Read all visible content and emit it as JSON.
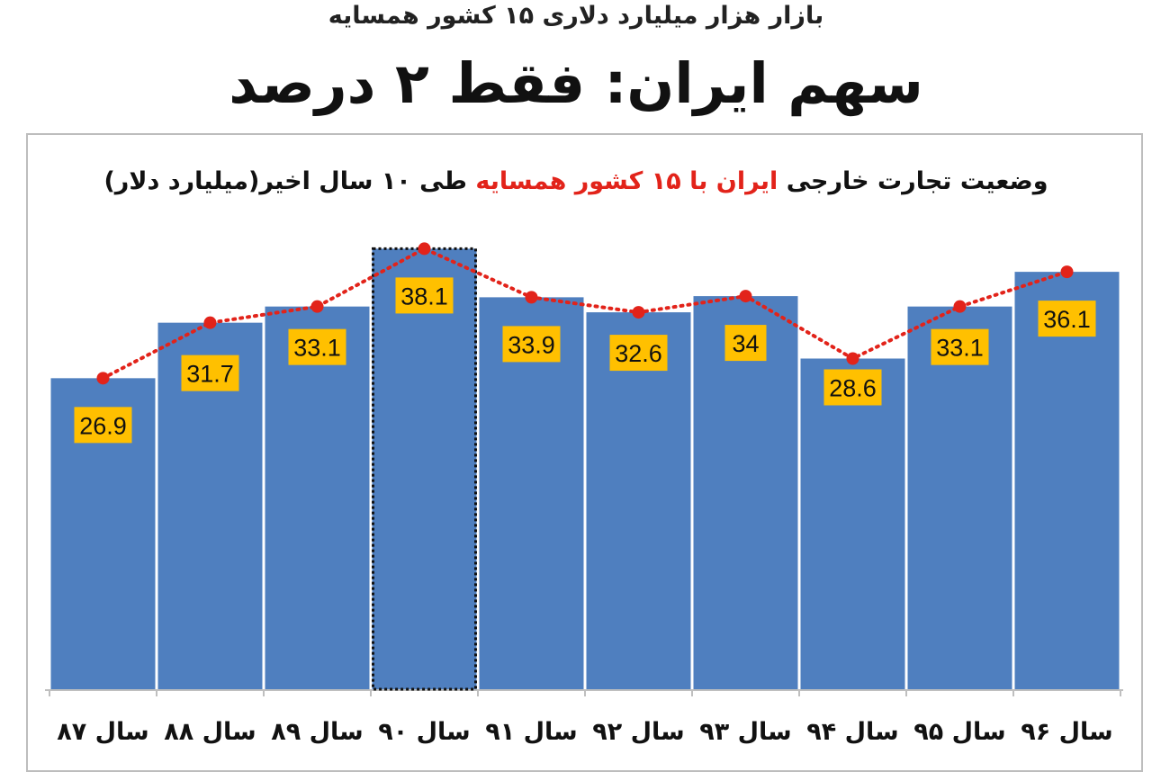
{
  "header": {
    "kicker": "بازار هزار میلیارد دلاری ۱۵ کشور همسایه",
    "headline": "سهم ایران: فقط ۲ درصد"
  },
  "chart_data": {
    "type": "bar",
    "title_parts": {
      "before": "وضعیت تجارت خارجی",
      "highlight": "ایران با ۱۵ کشور همسایه",
      "after": "طی ۱۰ سال اخیر(میلیارد دلار)"
    },
    "categories": [
      "سال ۸۷",
      "سال ۸۸",
      "سال ۸۹",
      "سال ۹۰",
      "سال ۹۱",
      "سال ۹۲",
      "سال ۹۳",
      "سال ۹۴",
      "سال ۹۵",
      "سال ۹۶"
    ],
    "values": [
      26.9,
      31.7,
      33.1,
      38.1,
      33.9,
      32.6,
      34,
      28.6,
      33.1,
      36.1
    ],
    "value_labels": [
      "26.9",
      "31.7",
      "33.1",
      "38.1",
      "33.9",
      "32.6",
      "34",
      "28.6",
      "33.1",
      "36.1"
    ],
    "overlay": "dotted line with markers through bar tops",
    "highlighted_category": "سال ۹۰",
    "category_order": "left-to-right",
    "colors": {
      "bar": "#4f7fbf",
      "line": "#e2231a",
      "label_bg": "#ffc000",
      "highlight": "#e2231a"
    },
    "grid": false,
    "legend": "none"
  }
}
